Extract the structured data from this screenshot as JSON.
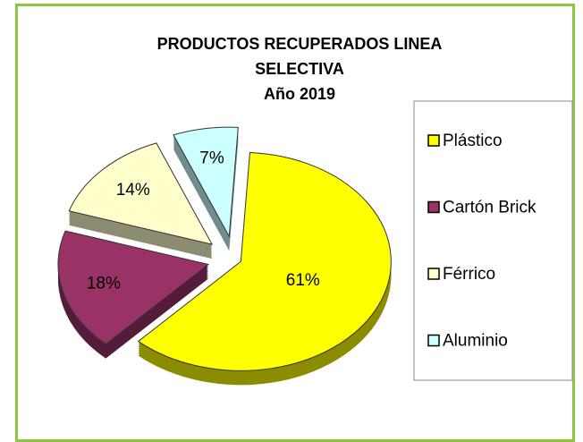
{
  "chart_data": {
    "type": "pie",
    "title": "PRODUCTOS RECUPERADOS LINEA SELECTIVA",
    "subtitle": "Año 2019",
    "categories": [
      "Plástico",
      "Cartón Brick",
      "Férrico",
      "Aluminio"
    ],
    "values": [
      61,
      18,
      14,
      7
    ],
    "value_labels": [
      "61%",
      "18%",
      "14%",
      "7%"
    ],
    "colors": [
      "#ffff00",
      "#993366",
      "#ffffcc",
      "#ccffff"
    ],
    "legend": "right"
  }
}
